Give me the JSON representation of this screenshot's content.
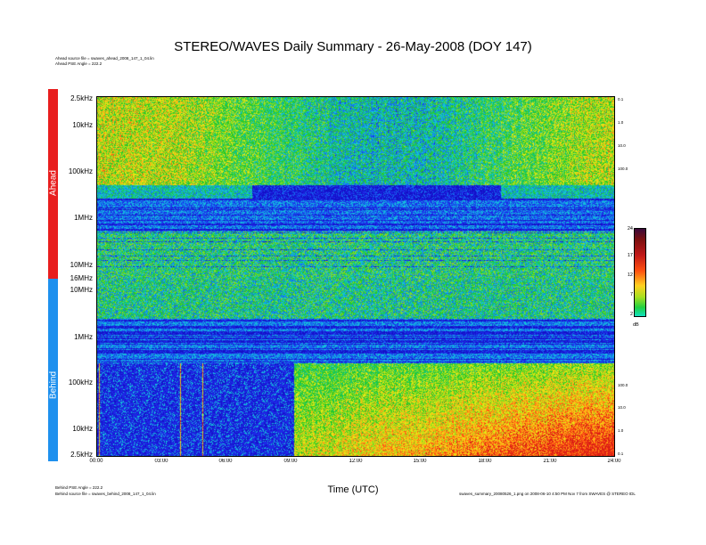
{
  "title": "STEREO/WAVES Daily Summary - 26-May-2008 (DOY 147)",
  "header_lines": [
    "Ahead source file = swaves_ahead_2008_147_1_04.lin",
    "Ahead PSE Angle = 222.2"
  ],
  "footer_left": [
    "Behind PSE Angle = 222.2",
    "Behind source file = swaves_behind_2008_147_1_04.lin"
  ],
  "footer_right": "swaves_summary_20080526_1.png  on 2008-06-10  4:50 PM Nov 7  from  SWAVES  @  STEREO  IDL",
  "colors": {
    "ahead_bar": "#e81e1e",
    "behind_bar": "#1e90ee",
    "low": "#1410e6",
    "mid": "#1ec81e",
    "high": "#ff4010"
  },
  "chart_data": {
    "type": "heatmap",
    "xlabel": "Time (UTC)",
    "x_ticks": [
      "00:00",
      "03:00",
      "06:00",
      "09:00",
      "12:00",
      "15:00",
      "18:00",
      "21:00",
      "24:00"
    ],
    "xlim": [
      "00:00",
      "24:00"
    ],
    "panels": [
      {
        "name": "Ahead",
        "y_ticks": [
          "2.5kHz",
          "10kHz",
          "100kHz",
          "1MHz",
          "10MHz",
          "16MHz"
        ],
        "right_ticks": [
          "0.1",
          "1.0",
          "10.0",
          "100.0"
        ]
      },
      {
        "name": "Behind",
        "y_ticks": [
          "10MHz",
          "1MHz",
          "100kHz",
          "10kHz",
          "2.5kHz"
        ],
        "right_ticks": [
          "100.0",
          "10.0",
          "1.0",
          "0.1"
        ]
      }
    ],
    "colorbar": {
      "unit": "dB",
      "ticks": [
        "24",
        "17",
        "12",
        "7",
        "2"
      ],
      "range": [
        2,
        24
      ]
    }
  }
}
